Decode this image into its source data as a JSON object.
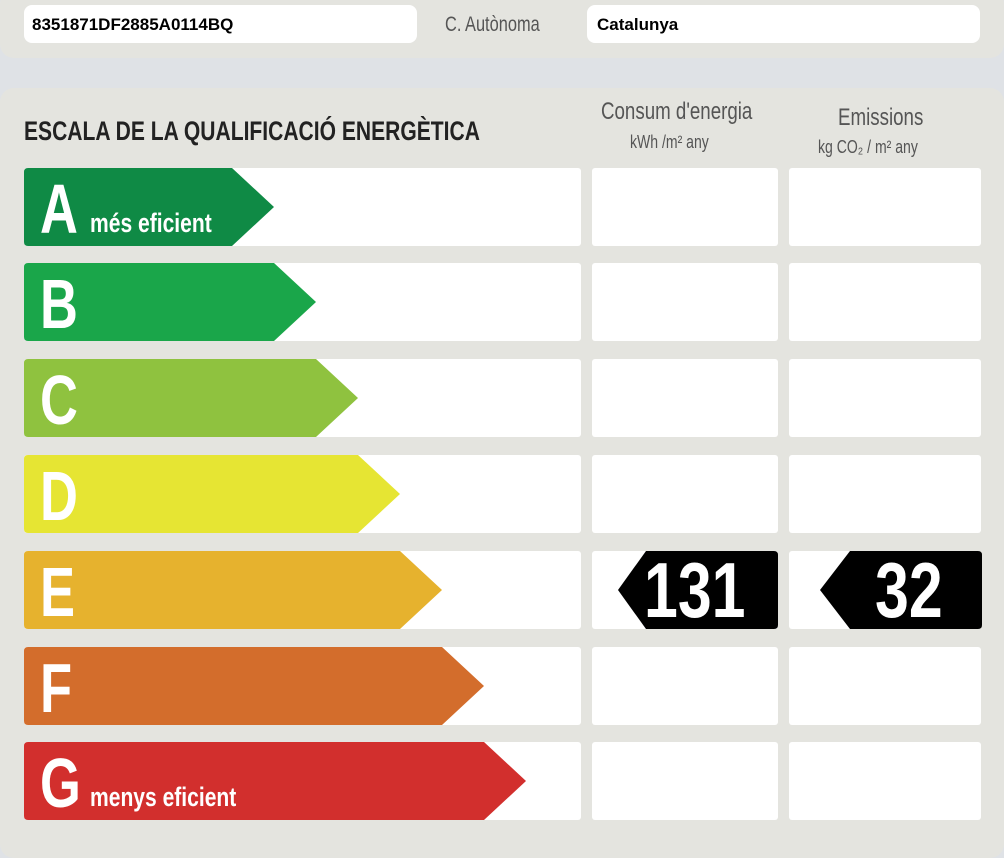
{
  "header": {
    "reference": "8351871DF2885A0114BQ",
    "region_label": "C. Autònoma",
    "region_value": "Catalunya"
  },
  "scale": {
    "title": "ESCALA DE LA QUALIFICACIÓ ENERGÈTICA",
    "col_energy": {
      "title": "Consum d'energia",
      "unit": "kWh /m² any"
    },
    "col_emissions": {
      "title": "Emissions",
      "unit": "kg CO₂ / m² any"
    },
    "classes": [
      {
        "letter": "A",
        "note": "més eficient",
        "color": "#0f8a45"
      },
      {
        "letter": "B",
        "note": "",
        "color": "#1aa64a"
      },
      {
        "letter": "C",
        "note": "",
        "color": "#8fc23f"
      },
      {
        "letter": "D",
        "note": "",
        "color": "#e6e533"
      },
      {
        "letter": "E",
        "note": "",
        "color": "#e6b22e"
      },
      {
        "letter": "F",
        "note": "",
        "color": "#d36d2c"
      },
      {
        "letter": "G",
        "note": "menys eficient",
        "color": "#d22f2d"
      }
    ],
    "rating": {
      "class": "E",
      "energy_value": "131",
      "emissions_value": "32",
      "marker_color": "#000000"
    }
  }
}
